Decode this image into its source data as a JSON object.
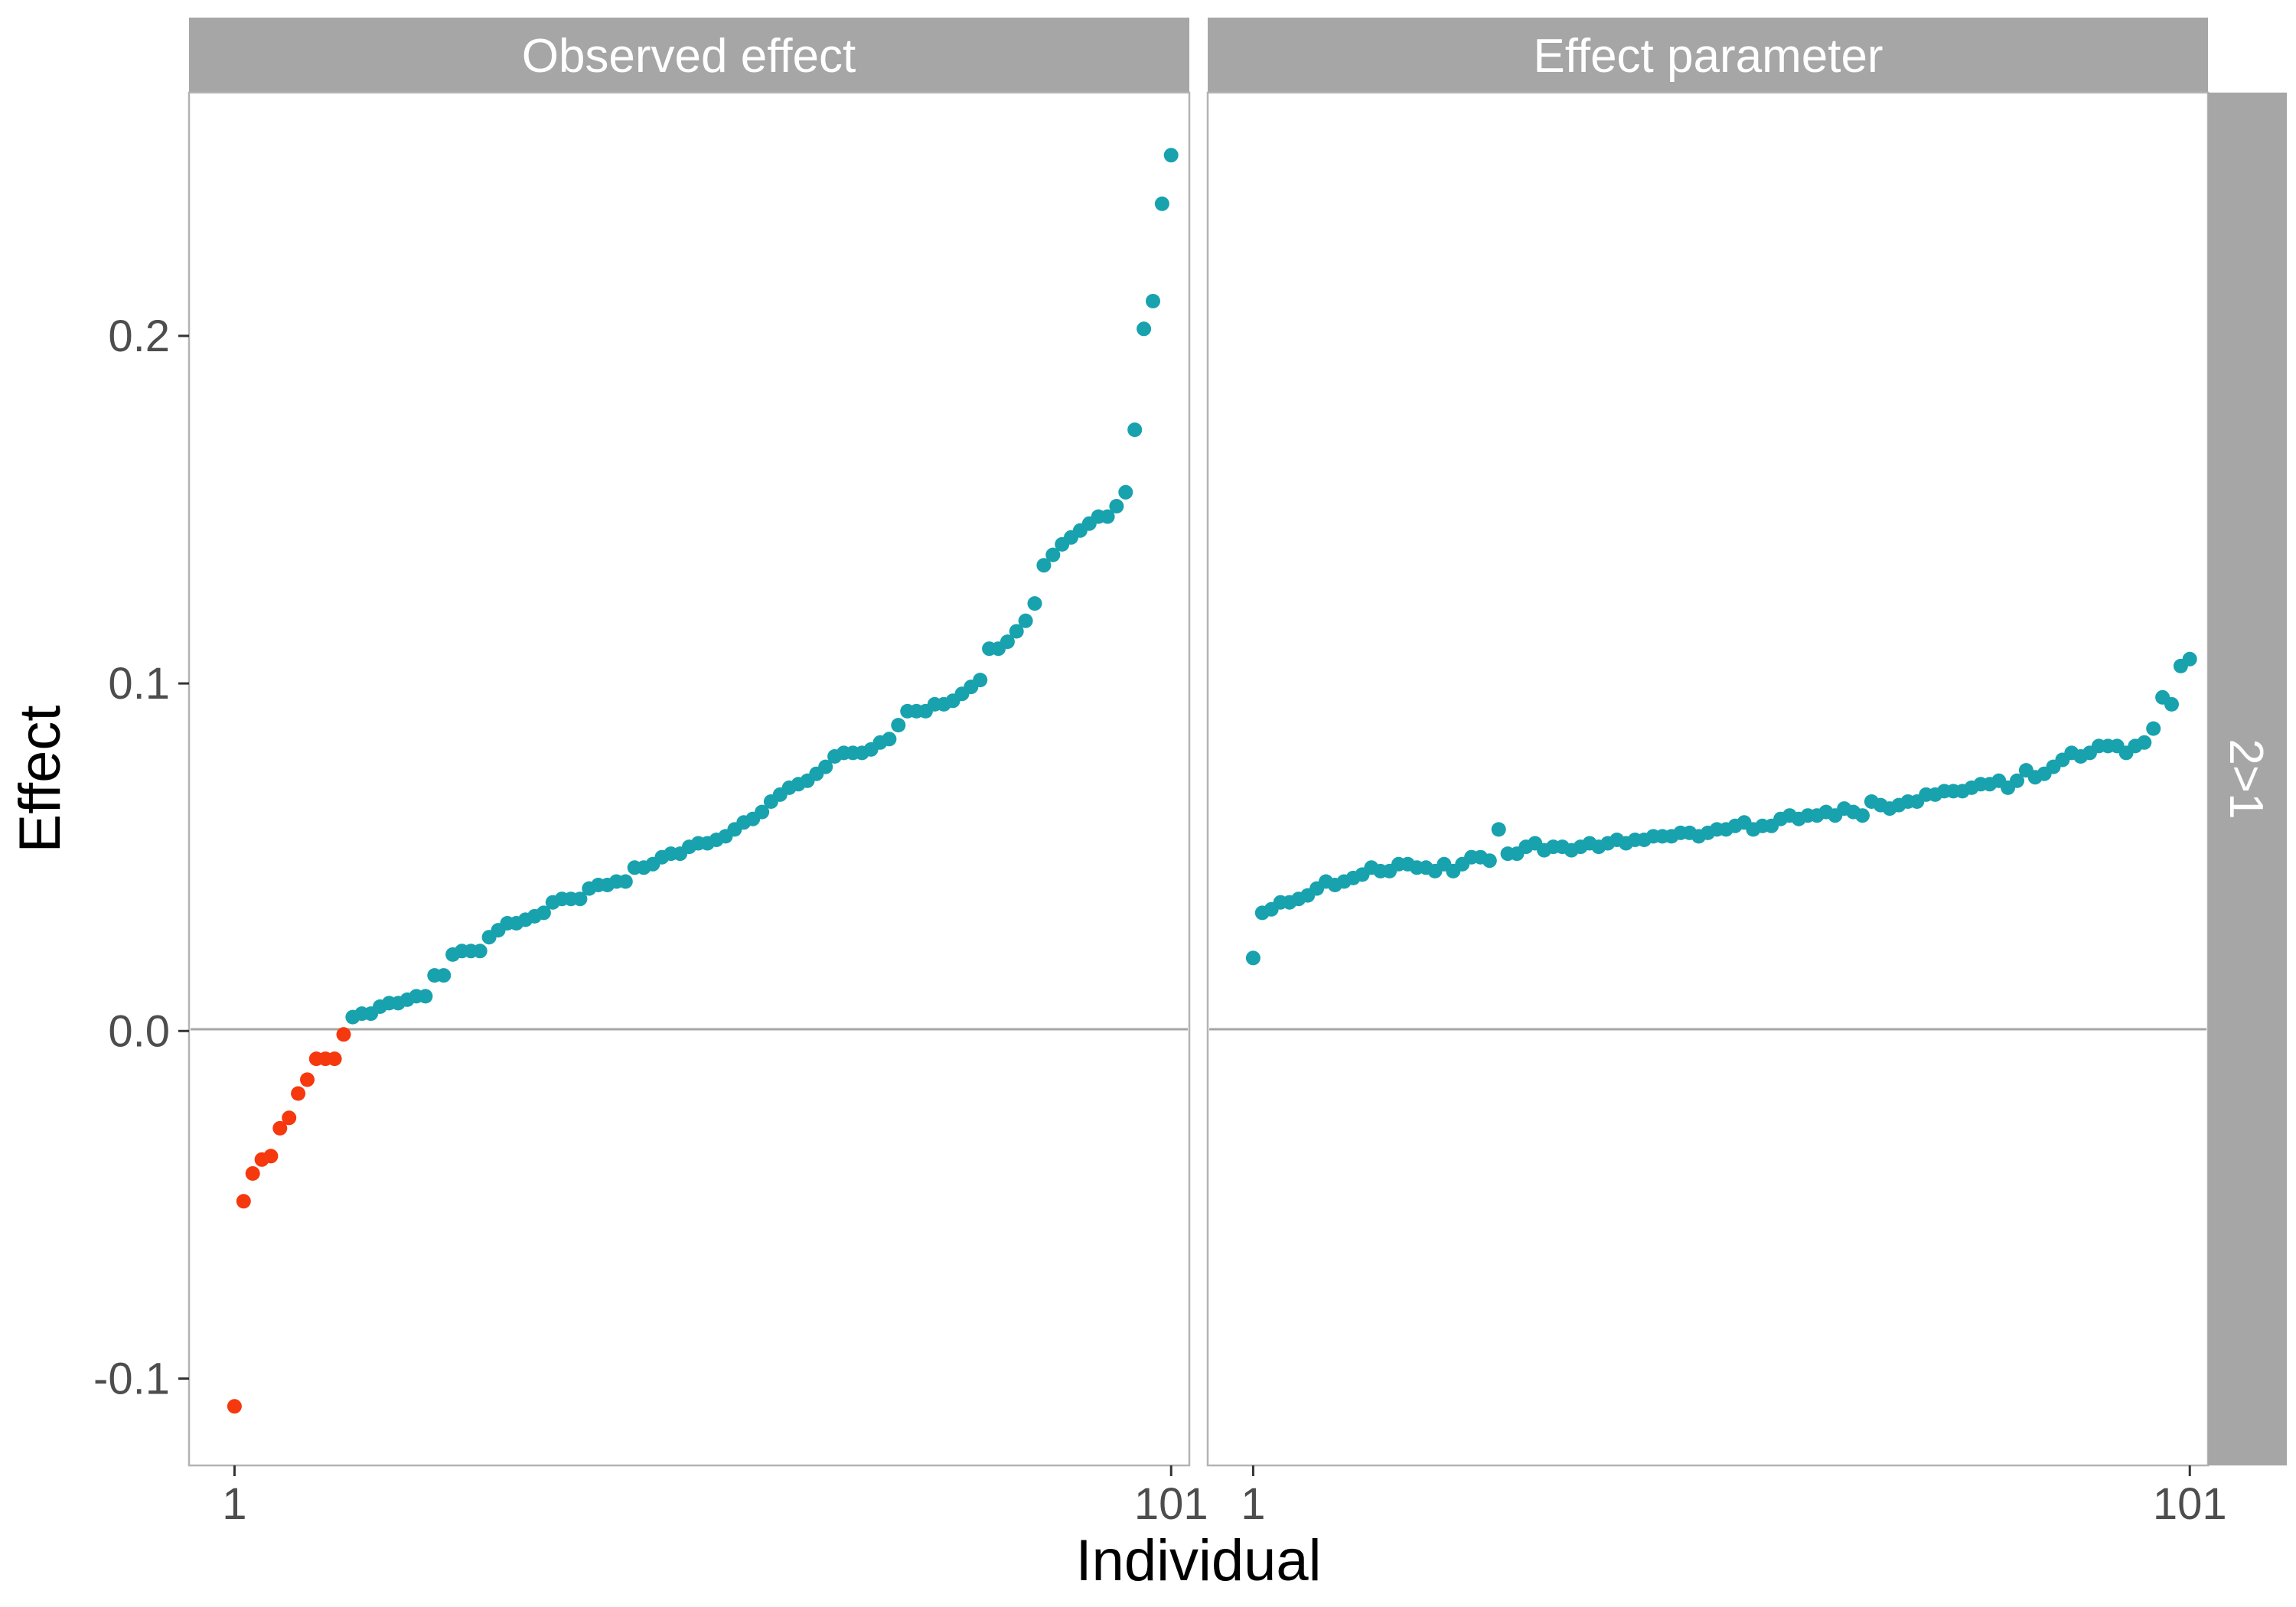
{
  "chart_data": {
    "type": "scatter",
    "facet_row_label": "2>1",
    "xlabel": "Individual",
    "ylabel": "Effect",
    "xlim": [
      -4,
      106
    ],
    "ylim": [
      -0.125,
      0.27
    ],
    "x_ticks": [
      1,
      101
    ],
    "y_ticks": [
      -0.1,
      0.0,
      0.1,
      0.2
    ],
    "y_tick_labels": [
      "-0.1",
      "0.0",
      "0.1",
      "0.2"
    ],
    "reference_line_y": 0,
    "grid": false,
    "colors": {
      "negative": "#F5380E",
      "positive": "#17A2AE",
      "strip_bg": "#A6A6A6",
      "panel_border": "#B3B3B3",
      "zero_line": "#A6A6A6"
    },
    "panels": [
      {
        "title": "Observed effect",
        "points": [
          [
            1,
            -0.108
          ],
          [
            2,
            -0.049
          ],
          [
            3,
            -0.041
          ],
          [
            4,
            -0.037
          ],
          [
            5,
            -0.036
          ],
          [
            6,
            -0.028
          ],
          [
            7,
            -0.025
          ],
          [
            8,
            -0.018
          ],
          [
            9,
            -0.014
          ],
          [
            10,
            -0.008
          ],
          [
            11,
            -0.008
          ],
          [
            12,
            -0.008
          ],
          [
            13,
            -0.001
          ],
          [
            14,
            0.004
          ],
          [
            15,
            0.005
          ],
          [
            16,
            0.005
          ],
          [
            17,
            0.007
          ],
          [
            18,
            0.008
          ],
          [
            19,
            0.008
          ],
          [
            20,
            0.009
          ],
          [
            21,
            0.01
          ],
          [
            22,
            0.01
          ],
          [
            23,
            0.016
          ],
          [
            24,
            0.016
          ],
          [
            25,
            0.022
          ],
          [
            26,
            0.023
          ],
          [
            27,
            0.023
          ],
          [
            28,
            0.023
          ],
          [
            29,
            0.027
          ],
          [
            30,
            0.029
          ],
          [
            31,
            0.031
          ],
          [
            32,
            0.031
          ],
          [
            33,
            0.032
          ],
          [
            34,
            0.033
          ],
          [
            35,
            0.034
          ],
          [
            36,
            0.037
          ],
          [
            37,
            0.038
          ],
          [
            38,
            0.038
          ],
          [
            39,
            0.038
          ],
          [
            40,
            0.041
          ],
          [
            41,
            0.042
          ],
          [
            42,
            0.042
          ],
          [
            43,
            0.043
          ],
          [
            44,
            0.043
          ],
          [
            45,
            0.047
          ],
          [
            46,
            0.047
          ],
          [
            47,
            0.048
          ],
          [
            48,
            0.05
          ],
          [
            49,
            0.051
          ],
          [
            50,
            0.051
          ],
          [
            51,
            0.053
          ],
          [
            52,
            0.054
          ],
          [
            53,
            0.054
          ],
          [
            54,
            0.055
          ],
          [
            55,
            0.056
          ],
          [
            56,
            0.058
          ],
          [
            57,
            0.06
          ],
          [
            58,
            0.061
          ],
          [
            59,
            0.063
          ],
          [
            60,
            0.066
          ],
          [
            61,
            0.068
          ],
          [
            62,
            0.07
          ],
          [
            63,
            0.071
          ],
          [
            64,
            0.072
          ],
          [
            65,
            0.074
          ],
          [
            66,
            0.076
          ],
          [
            67,
            0.079
          ],
          [
            68,
            0.08
          ],
          [
            69,
            0.08
          ],
          [
            70,
            0.08
          ],
          [
            71,
            0.081
          ],
          [
            72,
            0.083
          ],
          [
            73,
            0.084
          ],
          [
            74,
            0.088
          ],
          [
            75,
            0.092
          ],
          [
            76,
            0.092
          ],
          [
            77,
            0.092
          ],
          [
            78,
            0.094
          ],
          [
            79,
            0.094
          ],
          [
            80,
            0.095
          ],
          [
            81,
            0.097
          ],
          [
            82,
            0.099
          ],
          [
            83,
            0.101
          ],
          [
            84,
            0.11
          ],
          [
            85,
            0.11
          ],
          [
            86,
            0.112
          ],
          [
            87,
            0.115
          ],
          [
            88,
            0.118
          ],
          [
            89,
            0.123
          ],
          [
            90,
            0.134
          ],
          [
            91,
            0.137
          ],
          [
            92,
            0.14
          ],
          [
            93,
            0.142
          ],
          [
            94,
            0.144
          ],
          [
            95,
            0.146
          ],
          [
            96,
            0.148
          ],
          [
            97,
            0.148
          ],
          [
            98,
            0.151
          ],
          [
            99,
            0.155
          ],
          [
            100,
            0.173
          ],
          [
            101,
            0.202
          ],
          [
            102,
            0.21
          ],
          [
            103,
            0.238
          ],
          [
            104,
            0.252
          ]
        ]
      },
      {
        "title": "Effect parameter",
        "points": [
          [
            1,
            0.021
          ],
          [
            2,
            0.034
          ],
          [
            3,
            0.035
          ],
          [
            4,
            0.037
          ],
          [
            5,
            0.037
          ],
          [
            6,
            0.038
          ],
          [
            7,
            0.039
          ],
          [
            8,
            0.041
          ],
          [
            9,
            0.043
          ],
          [
            10,
            0.042
          ],
          [
            11,
            0.043
          ],
          [
            12,
            0.044
          ],
          [
            13,
            0.045
          ],
          [
            14,
            0.047
          ],
          [
            15,
            0.046
          ],
          [
            16,
            0.046
          ],
          [
            17,
            0.048
          ],
          [
            18,
            0.048
          ],
          [
            19,
            0.047
          ],
          [
            20,
            0.047
          ],
          [
            21,
            0.046
          ],
          [
            22,
            0.048
          ],
          [
            23,
            0.046
          ],
          [
            24,
            0.048
          ],
          [
            25,
            0.05
          ],
          [
            26,
            0.05
          ],
          [
            27,
            0.049
          ],
          [
            28,
            0.058
          ],
          [
            29,
            0.051
          ],
          [
            30,
            0.051
          ],
          [
            31,
            0.053
          ],
          [
            32,
            0.054
          ],
          [
            33,
            0.052
          ],
          [
            34,
            0.053
          ],
          [
            35,
            0.053
          ],
          [
            36,
            0.052
          ],
          [
            37,
            0.053
          ],
          [
            38,
            0.054
          ],
          [
            39,
            0.053
          ],
          [
            40,
            0.054
          ],
          [
            41,
            0.055
          ],
          [
            42,
            0.054
          ],
          [
            43,
            0.055
          ],
          [
            44,
            0.055
          ],
          [
            45,
            0.056
          ],
          [
            46,
            0.056
          ],
          [
            47,
            0.056
          ],
          [
            48,
            0.057
          ],
          [
            49,
            0.057
          ],
          [
            50,
            0.056
          ],
          [
            51,
            0.057
          ],
          [
            52,
            0.058
          ],
          [
            53,
            0.058
          ],
          [
            54,
            0.059
          ],
          [
            55,
            0.06
          ],
          [
            56,
            0.058
          ],
          [
            57,
            0.059
          ],
          [
            58,
            0.059
          ],
          [
            59,
            0.061
          ],
          [
            60,
            0.062
          ],
          [
            61,
            0.061
          ],
          [
            62,
            0.062
          ],
          [
            63,
            0.062
          ],
          [
            64,
            0.063
          ],
          [
            65,
            0.062
          ],
          [
            66,
            0.064
          ],
          [
            67,
            0.063
          ],
          [
            68,
            0.062
          ],
          [
            69,
            0.066
          ],
          [
            70,
            0.065
          ],
          [
            71,
            0.064
          ],
          [
            72,
            0.065
          ],
          [
            73,
            0.066
          ],
          [
            74,
            0.066
          ],
          [
            75,
            0.068
          ],
          [
            76,
            0.068
          ],
          [
            77,
            0.069
          ],
          [
            78,
            0.069
          ],
          [
            79,
            0.069
          ],
          [
            80,
            0.07
          ],
          [
            81,
            0.071
          ],
          [
            82,
            0.071
          ],
          [
            83,
            0.072
          ],
          [
            84,
            0.07
          ],
          [
            85,
            0.072
          ],
          [
            86,
            0.075
          ],
          [
            87,
            0.073
          ],
          [
            88,
            0.074
          ],
          [
            89,
            0.076
          ],
          [
            90,
            0.078
          ],
          [
            91,
            0.08
          ],
          [
            92,
            0.079
          ],
          [
            93,
            0.08
          ],
          [
            94,
            0.082
          ],
          [
            95,
            0.082
          ],
          [
            96,
            0.082
          ],
          [
            97,
            0.08
          ],
          [
            98,
            0.082
          ],
          [
            99,
            0.083
          ],
          [
            100,
            0.087
          ],
          [
            101,
            0.096
          ],
          [
            102,
            0.094
          ],
          [
            103,
            0.105
          ],
          [
            104,
            0.107
          ]
        ]
      }
    ]
  }
}
